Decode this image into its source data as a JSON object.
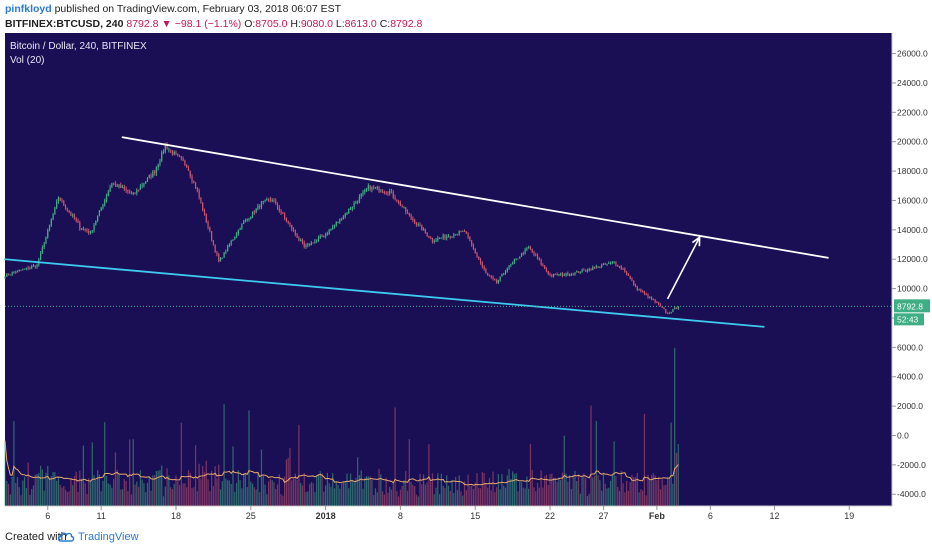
{
  "header": {
    "author": "pinfkloyd",
    "published_text": "published on TradingView.com, February 03, 2018 06:07 EST",
    "symbol": "BITFINEX:BTCUSD, 240",
    "last_price": "8792.8",
    "change_arrow": "▼",
    "change": "−98.1 (−1.1%)",
    "o_label": "O:",
    "o_value": "8705.0",
    "h_label": "H:",
    "h_value": "9080.0",
    "l_label": "L:",
    "l_value": "8613.0",
    "c_label": "C:",
    "c_value": "8792.8"
  },
  "legend": {
    "title": "Bitcoin / Dollar, 240, BITFINEX",
    "indicator": "Vol (20)"
  },
  "colors": {
    "background": "#1a0f54",
    "up_candle": "#3fae84",
    "down_candle": "#c8546e",
    "resistance_line": "#ffffff",
    "support_line": "#3ec9ef",
    "volume_ma": "#e6a96b",
    "price_badge": "#3fae84"
  },
  "footer": {
    "created_with": "Created with",
    "brand": "TradingView",
    "logo_icon": "tradingview-cloud-icon"
  },
  "price_badge": {
    "price": "8792.8",
    "countdown": "52:43"
  },
  "chart_data": {
    "type": "candlestick",
    "title": "Bitcoin / Dollar, 240, BITFINEX",
    "y_ticks": [
      "26000.0",
      "24000.0",
      "22000.0",
      "20000.0",
      "18000.0",
      "16000.0",
      "14000.0",
      "12000.0",
      "10000.0",
      "8000.0",
      "6000.0",
      "4000.0",
      "2000.0",
      "0.0",
      "-2000.0",
      "-4000.0"
    ],
    "y_tick_values": [
      26000,
      24000,
      22000,
      20000,
      18000,
      16000,
      14000,
      12000,
      10000,
      8000,
      6000,
      4000,
      2000,
      0,
      -2000,
      -4000
    ],
    "ylim": [
      -4800,
      27400
    ],
    "x_ticks": [
      "6",
      "11",
      "18",
      "25",
      "2018",
      "8",
      "15",
      "22",
      "27",
      "Feb",
      "6",
      "12",
      "19"
    ],
    "x_tick_dates": [
      "2017-12-06",
      "2017-12-11",
      "2017-12-18",
      "2017-12-25",
      "2018-01-01",
      "2018-01-08",
      "2018-01-15",
      "2018-01-22",
      "2018-01-27",
      "2018-02-01",
      "2018-02-06",
      "2018-02-12",
      "2018-02-19"
    ],
    "xlim": [
      "2017-12-02",
      "2018-02-23"
    ],
    "price_anchors": [
      [
        "2017-12-02",
        10900
      ],
      [
        "2017-12-05",
        11600
      ],
      [
        "2017-12-07",
        16200
      ],
      [
        "2017-12-09",
        14200
      ],
      [
        "2017-12-10",
        13800
      ],
      [
        "2017-12-12",
        17200
      ],
      [
        "2017-12-14",
        16400
      ],
      [
        "2017-12-16",
        18000
      ],
      [
        "2017-12-17",
        19700
      ],
      [
        "2017-12-19",
        18400
      ],
      [
        "2017-12-20",
        16600
      ],
      [
        "2017-12-22",
        11800
      ],
      [
        "2017-12-24",
        14200
      ],
      [
        "2017-12-26",
        15800
      ],
      [
        "2017-12-27",
        16100
      ],
      [
        "2017-12-30",
        12800
      ],
      [
        "2018-01-01",
        13700
      ],
      [
        "2018-01-03",
        15200
      ],
      [
        "2018-01-05",
        16900
      ],
      [
        "2018-01-07",
        16600
      ],
      [
        "2018-01-09",
        14800
      ],
      [
        "2018-01-11",
        13300
      ],
      [
        "2018-01-13",
        13700
      ],
      [
        "2018-01-14",
        13900
      ],
      [
        "2018-01-16",
        11000
      ],
      [
        "2018-01-17",
        10400
      ],
      [
        "2018-01-18",
        11400
      ],
      [
        "2018-01-20",
        12800
      ],
      [
        "2018-01-22",
        10900
      ],
      [
        "2018-01-24",
        11000
      ],
      [
        "2018-01-25",
        11200
      ],
      [
        "2018-01-28",
        11800
      ],
      [
        "2018-01-29",
        11200
      ],
      [
        "2018-01-30",
        10100
      ],
      [
        "2018-02-01",
        9000
      ],
      [
        "2018-02-02",
        8300
      ],
      [
        "2018-02-03",
        8792.8
      ]
    ],
    "volume_base": -4800,
    "resistance_line": {
      "from": [
        "2017-12-13",
        20300
      ],
      "to": [
        "2018-02-17",
        12100
      ]
    },
    "support_line": {
      "from": [
        "2017-12-02",
        12000
      ],
      "to": [
        "2018-02-11",
        7400
      ]
    },
    "projection_arrow": {
      "from": [
        "2018-02-02",
        9300
      ],
      "to": [
        "2018-02-05",
        13500
      ]
    },
    "last_price": 8792.8,
    "grid": false,
    "legend": "top-left"
  }
}
